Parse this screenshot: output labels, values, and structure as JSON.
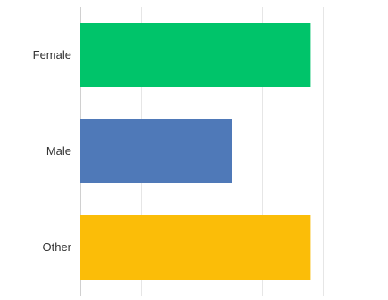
{
  "chart_data": {
    "type": "bar",
    "orientation": "horizontal",
    "categories": [
      "Female",
      "Male",
      "Other"
    ],
    "values": [
      38,
      25,
      38
    ],
    "colors": [
      "#00c46a",
      "#4f79b8",
      "#fbbd08"
    ],
    "title": "",
    "xlabel": "",
    "ylabel": "",
    "xlim": [
      0,
      50
    ],
    "gridlines": true,
    "grid_step": 10,
    "legend": "none"
  }
}
